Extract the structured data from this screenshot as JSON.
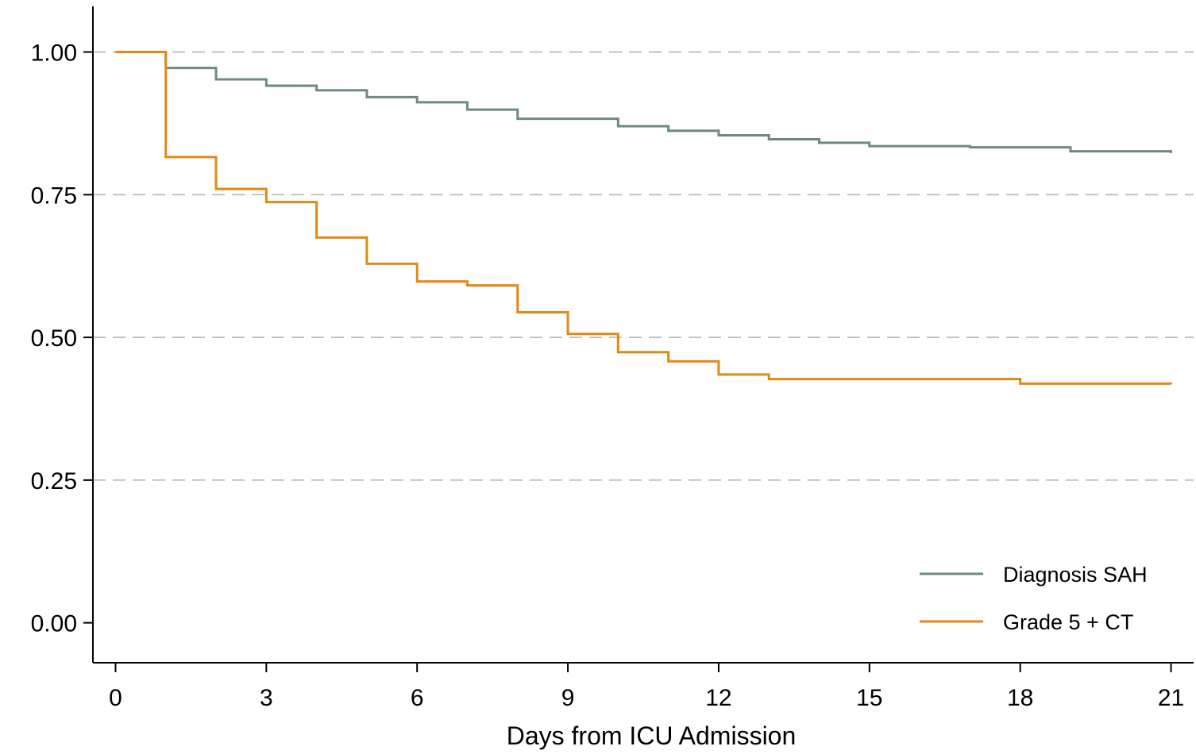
{
  "chart_data": {
    "type": "line",
    "xlabel": "Days from ICU Admission",
    "ylabel": "",
    "xlim": [
      -0.45,
      21.45
    ],
    "ylim": [
      -0.07,
      1.08
    ],
    "xticks": [
      0,
      3,
      6,
      9,
      12,
      15,
      18,
      21
    ],
    "xtick_labels": [
      "0",
      "3",
      "6",
      "9",
      "12",
      "15",
      "18",
      "21"
    ],
    "yticks": [
      0,
      0.25,
      0.5,
      0.75,
      1.0
    ],
    "ytick_labels": [
      "0.00",
      "0.25",
      "0.50",
      "0.75",
      "1.00"
    ],
    "grid": "horizontal-dashed",
    "legend_position": "bottom-right",
    "step": true,
    "series": [
      {
        "name": "Diagnosis SAH",
        "color": "#6e8b7d",
        "x": [
          0,
          1,
          2,
          3,
          4,
          5,
          6,
          7,
          8,
          10,
          11,
          12,
          13,
          14,
          15,
          17,
          19,
          21
        ],
        "y": [
          1.0,
          0.972,
          0.952,
          0.941,
          0.933,
          0.921,
          0.912,
          0.899,
          0.883,
          0.87,
          0.862,
          0.854,
          0.847,
          0.841,
          0.835,
          0.833,
          0.826,
          0.823
        ]
      },
      {
        "name": "Grade 5 + CT",
        "color": "#e08a14",
        "x": [
          0,
          1,
          2,
          3,
          4,
          5,
          6,
          7,
          8,
          9,
          10,
          11,
          12,
          13,
          18,
          21
        ],
        "y": [
          1.0,
          0.816,
          0.76,
          0.737,
          0.675,
          0.629,
          0.598,
          0.591,
          0.544,
          0.506,
          0.474,
          0.458,
          0.435,
          0.427,
          0.419,
          0.418
        ]
      }
    ]
  }
}
